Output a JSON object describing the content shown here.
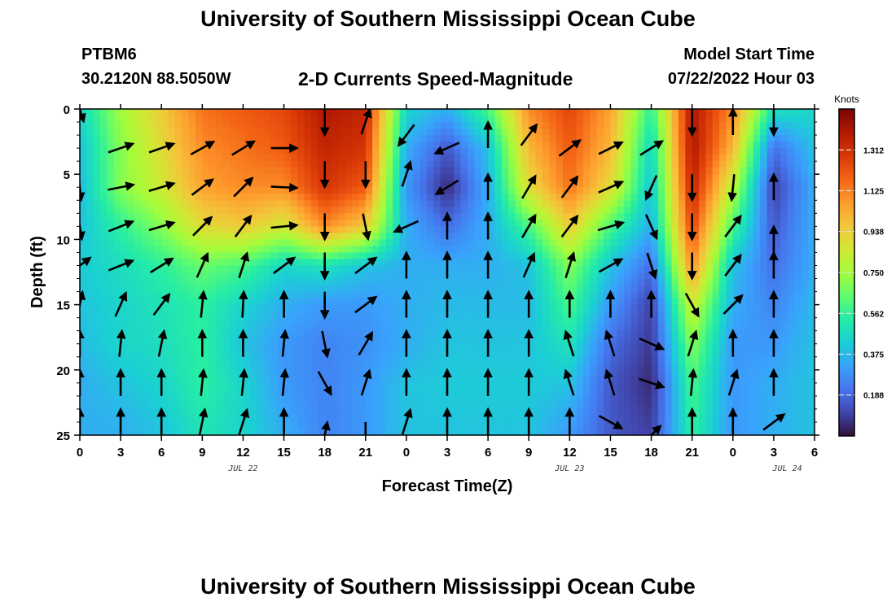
{
  "header": {
    "title": "University of Southern Mississippi Ocean Cube",
    "station_id": "PTBM6",
    "station_coords": "30.2120N  88.5050W",
    "subtitle": "2-D Currents Speed-Magnitude",
    "model_start_label": "Model Start Time",
    "model_start_value": "07/22/2022 Hour 03"
  },
  "footer": {
    "title": "University of Southern Mississippi Ocean Cube"
  },
  "chart_data": {
    "type": "heatmap",
    "title": "2-D Currents Speed-Magnitude",
    "xlabel": "Forecast Time(Z)",
    "ylabel": "Depth (ft)",
    "x_unit": "hours from 00Z Jul 22",
    "x_range": [
      0,
      54
    ],
    "y_range": [
      0,
      25
    ],
    "y_inverted": true,
    "x_tick_values": [
      0,
      3,
      6,
      9,
      12,
      15,
      18,
      21,
      24,
      27,
      30,
      33,
      36,
      39,
      42,
      45,
      48,
      51,
      54
    ],
    "x_tick_labels": [
      "0",
      "3",
      "6",
      "9",
      "12",
      "15",
      "18",
      "21",
      "0",
      "3",
      "6",
      "9",
      "12",
      "15",
      "18",
      "21",
      "0",
      "3",
      "6"
    ],
    "y_tick_values": [
      0,
      5,
      10,
      15,
      20,
      25
    ],
    "y_tick_labels": [
      "0",
      "5",
      "10",
      "15",
      "20",
      "25"
    ],
    "date_labels": [
      {
        "text": "JUL 22",
        "x": 12
      },
      {
        "text": "JUL 23",
        "x": 36
      },
      {
        "text": "JUL 24",
        "x": 52
      }
    ],
    "colorbar": {
      "unit": "Knots",
      "min": 0.0,
      "max": 1.5,
      "ticks": [
        0.188,
        0.375,
        0.562,
        0.75,
        0.938,
        1.125,
        1.312
      ],
      "tick_labels": [
        "0.188",
        "0.375",
        "0.562",
        "0.750",
        "0.938",
        "1.125",
        "1.312"
      ],
      "colormap": [
        "#30123b",
        "#4145ab",
        "#4675ed",
        "#39a2fc",
        "#1bcfd4",
        "#24eca6",
        "#61fc6c",
        "#a4fc3b",
        "#d1e834",
        "#f3c63a",
        "#fe9b2d",
        "#f36315",
        "#d93806",
        "#b11901",
        "#7a0403"
      ]
    },
    "grid": false,
    "speed_profiles": [
      {
        "x": 0,
        "values": [
          0.45,
          0.4,
          0.38,
          0.4,
          0.42,
          0.4,
          0.38,
          0.35,
          0.35
        ]
      },
      {
        "x": 3,
        "values": [
          0.75,
          0.7,
          0.7,
          0.55,
          0.48,
          0.45,
          0.45,
          0.4,
          0.35
        ]
      },
      {
        "x": 6,
        "values": [
          0.95,
          0.9,
          0.85,
          0.7,
          0.55,
          0.5,
          0.48,
          0.45,
          0.4
        ]
      },
      {
        "x": 9,
        "values": [
          1.15,
          1.1,
          1.05,
          0.9,
          0.65,
          0.55,
          0.55,
          0.55,
          0.5
        ]
      },
      {
        "x": 12,
        "values": [
          1.2,
          1.15,
          1.1,
          0.95,
          0.6,
          0.45,
          0.4,
          0.45,
          0.45
        ]
      },
      {
        "x": 15,
        "values": [
          1.25,
          1.2,
          1.1,
          0.85,
          0.45,
          0.35,
          0.3,
          0.3,
          0.35
        ]
      },
      {
        "x": 18,
        "values": [
          1.4,
          1.35,
          1.3,
          1.1,
          0.5,
          0.3,
          0.25,
          0.25,
          0.25
        ]
      },
      {
        "x": 21,
        "values": [
          1.35,
          1.3,
          1.2,
          0.95,
          0.4,
          0.3,
          0.28,
          0.3,
          0.3
        ]
      },
      {
        "x": 24,
        "values": [
          0.45,
          0.35,
          0.3,
          0.35,
          0.35,
          0.35,
          0.35,
          0.4,
          0.4
        ]
      },
      {
        "x": 27,
        "values": [
          0.35,
          0.15,
          0.05,
          0.2,
          0.35,
          0.38,
          0.4,
          0.42,
          0.4
        ]
      },
      {
        "x": 30,
        "values": [
          0.6,
          0.4,
          0.35,
          0.35,
          0.35,
          0.38,
          0.4,
          0.42,
          0.4
        ]
      },
      {
        "x": 33,
        "values": [
          1.1,
          1.0,
          0.9,
          0.6,
          0.4,
          0.38,
          0.4,
          0.42,
          0.4
        ]
      },
      {
        "x": 36,
        "values": [
          1.25,
          1.2,
          1.15,
          0.95,
          0.7,
          0.6,
          0.5,
          0.4,
          0.3
        ]
      },
      {
        "x": 39,
        "values": [
          1.05,
          1.0,
          0.9,
          0.6,
          0.4,
          0.3,
          0.2,
          0.15,
          0.15
        ]
      },
      {
        "x": 42,
        "values": [
          0.55,
          0.45,
          0.4,
          0.35,
          0.2,
          0.1,
          0.08,
          0.05,
          0.1
        ]
      },
      {
        "x": 45,
        "values": [
          1.4,
          1.4,
          1.35,
          1.25,
          1.1,
          0.85,
          0.7,
          0.6,
          0.55
        ]
      },
      {
        "x": 48,
        "values": [
          1.1,
          1.0,
          0.8,
          0.6,
          0.4,
          0.35,
          0.3,
          0.3,
          0.3
        ]
      },
      {
        "x": 51,
        "values": [
          0.5,
          0.2,
          0.1,
          0.15,
          0.2,
          0.25,
          0.3,
          0.35,
          0.35
        ]
      },
      {
        "x": 54,
        "values": [
          0.45,
          0.4,
          0.35,
          0.35,
          0.35,
          0.38,
          0.4,
          0.4,
          0.4
        ]
      }
    ],
    "speed_profile_depths": [
      0,
      3,
      6,
      9,
      12,
      15,
      18,
      21,
      25
    ],
    "vectors": [
      {
        "x": 0,
        "depth": 0,
        "u": 0.3,
        "v": -1.0
      },
      {
        "x": 3,
        "depth": 3,
        "u": 1.0,
        "v": 0.35
      },
      {
        "x": 6,
        "depth": 3,
        "u": 1.0,
        "v": 0.35
      },
      {
        "x": 9,
        "depth": 3,
        "u": 0.9,
        "v": 0.5
      },
      {
        "x": 12,
        "depth": 3,
        "u": 0.9,
        "v": 0.55
      },
      {
        "x": 15,
        "depth": 3,
        "u": 1.0,
        "v": 0.0
      },
      {
        "x": 18,
        "depth": 1,
        "u": 0.0,
        "v": -1.0
      },
      {
        "x": 21,
        "depth": 1,
        "u": 0.3,
        "v": 0.9
      },
      {
        "x": 24,
        "depth": 2,
        "u": -0.6,
        "v": -0.8
      },
      {
        "x": 27,
        "depth": 3,
        "u": -0.9,
        "v": -0.4
      },
      {
        "x": 30,
        "depth": 2,
        "u": 0.0,
        "v": 1.0
      },
      {
        "x": 33,
        "depth": 2,
        "u": 0.6,
        "v": 0.8
      },
      {
        "x": 36,
        "depth": 3,
        "u": 0.8,
        "v": 0.6
      },
      {
        "x": 39,
        "depth": 3,
        "u": 1.0,
        "v": 0.5
      },
      {
        "x": 42,
        "depth": 3,
        "u": 0.8,
        "v": 0.5
      },
      {
        "x": 45,
        "depth": 1,
        "u": 0.0,
        "v": -1.0
      },
      {
        "x": 48,
        "depth": 1,
        "u": 0.0,
        "v": 1.0
      },
      {
        "x": 51,
        "depth": 1,
        "u": 0.0,
        "v": -1.0
      },
      {
        "x": 0,
        "depth": 6,
        "u": 0.1,
        "v": -1.0
      },
      {
        "x": 3,
        "depth": 6,
        "u": 1.0,
        "v": 0.2
      },
      {
        "x": 6,
        "depth": 6,
        "u": 1.0,
        "v": 0.3
      },
      {
        "x": 9,
        "depth": 6,
        "u": 0.8,
        "v": 0.6
      },
      {
        "x": 12,
        "depth": 6,
        "u": 0.7,
        "v": 0.7
      },
      {
        "x": 15,
        "depth": 6,
        "u": 1.0,
        "v": -0.05
      },
      {
        "x": 18,
        "depth": 5,
        "u": 0.0,
        "v": -1.0
      },
      {
        "x": 21,
        "depth": 5,
        "u": 0.0,
        "v": -1.0
      },
      {
        "x": 24,
        "depth": 5,
        "u": 0.3,
        "v": 0.9
      },
      {
        "x": 27,
        "depth": 6,
        "u": -0.8,
        "v": -0.5
      },
      {
        "x": 30,
        "depth": 6,
        "u": 0.0,
        "v": 1.0
      },
      {
        "x": 33,
        "depth": 6,
        "u": 0.5,
        "v": 0.85
      },
      {
        "x": 36,
        "depth": 6,
        "u": 0.6,
        "v": 0.8
      },
      {
        "x": 39,
        "depth": 6,
        "u": 0.9,
        "v": 0.4
      },
      {
        "x": 42,
        "depth": 6,
        "u": -0.4,
        "v": -0.9
      },
      {
        "x": 45,
        "depth": 6,
        "u": 0.0,
        "v": -1.0
      },
      {
        "x": 48,
        "depth": 6,
        "u": -0.1,
        "v": -1.0
      },
      {
        "x": 51,
        "depth": 6,
        "u": 0.0,
        "v": 1.0
      },
      {
        "x": 0,
        "depth": 9,
        "u": 0.15,
        "v": -1.0
      },
      {
        "x": 3,
        "depth": 9,
        "u": 1.0,
        "v": 0.4
      },
      {
        "x": 6,
        "depth": 9,
        "u": 1.0,
        "v": 0.3
      },
      {
        "x": 9,
        "depth": 9,
        "u": 0.7,
        "v": 0.7
      },
      {
        "x": 12,
        "depth": 9,
        "u": 0.6,
        "v": 0.8
      },
      {
        "x": 15,
        "depth": 9,
        "u": 1.0,
        "v": 0.1
      },
      {
        "x": 18,
        "depth": 9,
        "u": 0.0,
        "v": -1.0
      },
      {
        "x": 21,
        "depth": 9,
        "u": 0.2,
        "v": -1.0
      },
      {
        "x": 24,
        "depth": 9,
        "u": -0.9,
        "v": -0.4
      },
      {
        "x": 27,
        "depth": 9,
        "u": 0.0,
        "v": 1.0
      },
      {
        "x": 30,
        "depth": 9,
        "u": 0.0,
        "v": 1.0
      },
      {
        "x": 33,
        "depth": 9,
        "u": 0.5,
        "v": 0.85
      },
      {
        "x": 36,
        "depth": 9,
        "u": 0.6,
        "v": 0.8
      },
      {
        "x": 39,
        "depth": 9,
        "u": 1.0,
        "v": 0.3
      },
      {
        "x": 42,
        "depth": 9,
        "u": 0.4,
        "v": -0.9
      },
      {
        "x": 45,
        "depth": 9,
        "u": 0.0,
        "v": -1.0
      },
      {
        "x": 48,
        "depth": 9,
        "u": 0.6,
        "v": 0.8
      },
      {
        "x": 51,
        "depth": 10,
        "u": 0.0,
        "v": 1.0
      },
      {
        "x": 0,
        "depth": 12,
        "u": 0.8,
        "v": 0.6
      },
      {
        "x": 3,
        "depth": 12,
        "u": 1.0,
        "v": 0.4
      },
      {
        "x": 6,
        "depth": 12,
        "u": 0.8,
        "v": 0.5
      },
      {
        "x": 9,
        "depth": 12,
        "u": 0.4,
        "v": 0.9
      },
      {
        "x": 12,
        "depth": 12,
        "u": 0.3,
        "v": 0.95
      },
      {
        "x": 15,
        "depth": 12,
        "u": 0.8,
        "v": 0.6
      },
      {
        "x": 18,
        "depth": 12,
        "u": 0.0,
        "v": -1.0
      },
      {
        "x": 21,
        "depth": 12,
        "u": 0.8,
        "v": 0.6
      },
      {
        "x": 24,
        "depth": 12,
        "u": 0.0,
        "v": 1.0
      },
      {
        "x": 27,
        "depth": 12,
        "u": 0.0,
        "v": 1.0
      },
      {
        "x": 30,
        "depth": 12,
        "u": 0.0,
        "v": 1.0
      },
      {
        "x": 33,
        "depth": 12,
        "u": 0.4,
        "v": 0.9
      },
      {
        "x": 36,
        "depth": 12,
        "u": 0.3,
        "v": 0.95
      },
      {
        "x": 39,
        "depth": 12,
        "u": 0.9,
        "v": 0.5
      },
      {
        "x": 42,
        "depth": 12,
        "u": 0.3,
        "v": -0.95
      },
      {
        "x": 45,
        "depth": 12,
        "u": 0.0,
        "v": -1.0
      },
      {
        "x": 48,
        "depth": 12,
        "u": 0.6,
        "v": 0.8
      },
      {
        "x": 51,
        "depth": 12,
        "u": 0.0,
        "v": 1.0
      },
      {
        "x": 0,
        "depth": 15,
        "u": 0.2,
        "v": 0.98
      },
      {
        "x": 3,
        "depth": 15,
        "u": 0.4,
        "v": 0.9
      },
      {
        "x": 6,
        "depth": 15,
        "u": 0.6,
        "v": 0.8
      },
      {
        "x": 9,
        "depth": 15,
        "u": 0.1,
        "v": 1.0
      },
      {
        "x": 12,
        "depth": 15,
        "u": 0.05,
        "v": 1.0
      },
      {
        "x": 15,
        "depth": 15,
        "u": 0.0,
        "v": 1.0
      },
      {
        "x": 18,
        "depth": 15,
        "u": 0.0,
        "v": -1.0
      },
      {
        "x": 21,
        "depth": 15,
        "u": 0.8,
        "v": 0.6
      },
      {
        "x": 24,
        "depth": 15,
        "u": 0.0,
        "v": 1.0
      },
      {
        "x": 27,
        "depth": 15,
        "u": 0.0,
        "v": 1.0
      },
      {
        "x": 30,
        "depth": 15,
        "u": 0.0,
        "v": 1.0
      },
      {
        "x": 33,
        "depth": 15,
        "u": 0.0,
        "v": 1.0
      },
      {
        "x": 36,
        "depth": 15,
        "u": 0.0,
        "v": 1.0
      },
      {
        "x": 39,
        "depth": 15,
        "u": 0.0,
        "v": 1.0
      },
      {
        "x": 42,
        "depth": 15,
        "u": 0.0,
        "v": 1.0
      },
      {
        "x": 45,
        "depth": 15,
        "u": 0.5,
        "v": -0.9
      },
      {
        "x": 48,
        "depth": 15,
        "u": 0.7,
        "v": 0.7
      },
      {
        "x": 51,
        "depth": 15,
        "u": 0.0,
        "v": 1.0
      },
      {
        "x": 0,
        "depth": 18,
        "u": 0.0,
        "v": 1.0
      },
      {
        "x": 3,
        "depth": 18,
        "u": 0.1,
        "v": 1.0
      },
      {
        "x": 6,
        "depth": 18,
        "u": 0.2,
        "v": 0.98
      },
      {
        "x": 9,
        "depth": 18,
        "u": 0.0,
        "v": 1.0
      },
      {
        "x": 12,
        "depth": 18,
        "u": 0.0,
        "v": 1.0
      },
      {
        "x": 15,
        "depth": 18,
        "u": 0.1,
        "v": 1.0
      },
      {
        "x": 18,
        "depth": 18,
        "u": 0.2,
        "v": -1.0
      },
      {
        "x": 21,
        "depth": 18,
        "u": 0.5,
        "v": 0.85
      },
      {
        "x": 24,
        "depth": 18,
        "u": 0.0,
        "v": 1.0
      },
      {
        "x": 27,
        "depth": 18,
        "u": 0.0,
        "v": 1.0
      },
      {
        "x": 30,
        "depth": 18,
        "u": 0.0,
        "v": 1.0
      },
      {
        "x": 33,
        "depth": 18,
        "u": 0.0,
        "v": 1.0
      },
      {
        "x": 36,
        "depth": 18,
        "u": -0.3,
        "v": 0.95
      },
      {
        "x": 39,
        "depth": 18,
        "u": -0.3,
        "v": 0.95
      },
      {
        "x": 42,
        "depth": 18,
        "u": 0.9,
        "v": -0.4
      },
      {
        "x": 45,
        "depth": 18,
        "u": 0.3,
        "v": 0.95
      },
      {
        "x": 48,
        "depth": 18,
        "u": 0.0,
        "v": 1.0
      },
      {
        "x": 51,
        "depth": 18,
        "u": 0.0,
        "v": 1.0
      },
      {
        "x": 0,
        "depth": 21,
        "u": 0.0,
        "v": 1.0
      },
      {
        "x": 3,
        "depth": 21,
        "u": 0.0,
        "v": 1.0
      },
      {
        "x": 6,
        "depth": 21,
        "u": 0.0,
        "v": 1.0
      },
      {
        "x": 9,
        "depth": 21,
        "u": 0.1,
        "v": 1.0
      },
      {
        "x": 12,
        "depth": 21,
        "u": 0.1,
        "v": 1.0
      },
      {
        "x": 15,
        "depth": 21,
        "u": 0.1,
        "v": 1.0
      },
      {
        "x": 18,
        "depth": 21,
        "u": 0.5,
        "v": -0.9
      },
      {
        "x": 21,
        "depth": 21,
        "u": 0.3,
        "v": 0.95
      },
      {
        "x": 24,
        "depth": 21,
        "u": 0.0,
        "v": 1.0
      },
      {
        "x": 27,
        "depth": 21,
        "u": 0.0,
        "v": 1.0
      },
      {
        "x": 30,
        "depth": 21,
        "u": 0.0,
        "v": 1.0
      },
      {
        "x": 33,
        "depth": 21,
        "u": 0.0,
        "v": 1.0
      },
      {
        "x": 36,
        "depth": 21,
        "u": -0.3,
        "v": 0.95
      },
      {
        "x": 39,
        "depth": 21,
        "u": -0.3,
        "v": 0.95
      },
      {
        "x": 42,
        "depth": 21,
        "u": 0.9,
        "v": -0.3
      },
      {
        "x": 45,
        "depth": 21,
        "u": 0.1,
        "v": 1.0
      },
      {
        "x": 48,
        "depth": 21,
        "u": 0.3,
        "v": 0.95
      },
      {
        "x": 51,
        "depth": 21,
        "u": 0.0,
        "v": 1.0
      },
      {
        "x": 0,
        "depth": 24,
        "u": 0.0,
        "v": 1.0
      },
      {
        "x": 3,
        "depth": 24,
        "u": 0.0,
        "v": 1.0
      },
      {
        "x": 6,
        "depth": 24,
        "u": 0.0,
        "v": 1.0
      },
      {
        "x": 9,
        "depth": 24,
        "u": 0.2,
        "v": 0.98
      },
      {
        "x": 12,
        "depth": 24,
        "u": 0.3,
        "v": 0.95
      },
      {
        "x": 15,
        "depth": 24,
        "u": 0.0,
        "v": 1.0
      },
      {
        "x": 18,
        "depth": 25,
        "u": 0.2,
        "v": 1.0
      },
      {
        "x": 21,
        "depth": 25,
        "u": 0.0,
        "v": -1.0
      },
      {
        "x": 24,
        "depth": 24,
        "u": 0.3,
        "v": 0.95
      },
      {
        "x": 27,
        "depth": 24,
        "u": 0.0,
        "v": 1.0
      },
      {
        "x": 30,
        "depth": 24,
        "u": 0.0,
        "v": 1.0
      },
      {
        "x": 33,
        "depth": 24,
        "u": 0.0,
        "v": 1.0
      },
      {
        "x": 36,
        "depth": 24,
        "u": 0.0,
        "v": 1.0
      },
      {
        "x": 39,
        "depth": 24,
        "u": 0.9,
        "v": -0.5
      },
      {
        "x": 42,
        "depth": 25,
        "u": 0.7,
        "v": 0.7
      },
      {
        "x": 45,
        "depth": 24,
        "u": 0.0,
        "v": 1.0
      },
      {
        "x": 48,
        "depth": 24,
        "u": 0.0,
        "v": 1.0
      },
      {
        "x": 51,
        "depth": 24,
        "u": 0.8,
        "v": 0.6
      }
    ]
  }
}
